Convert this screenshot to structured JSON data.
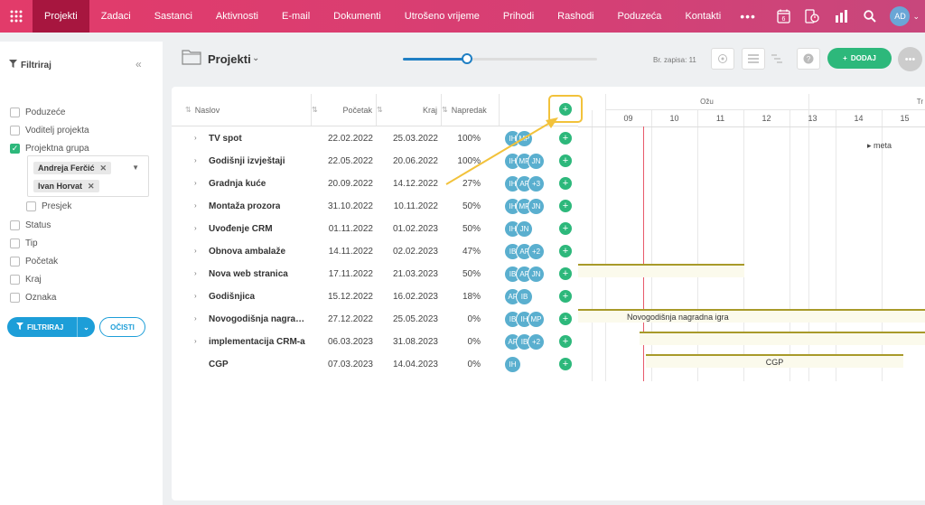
{
  "nav": {
    "items": [
      "Projekti",
      "Zadaci",
      "Sastanci",
      "Aktivnosti",
      "E-mail",
      "Dokumenti",
      "Utrošeno vrijeme",
      "Prihodi",
      "Rashodi",
      "Poduzeća",
      "Kontakti"
    ],
    "more": "•••",
    "calendar_day": "6",
    "user_initials": "AD"
  },
  "filter": {
    "title": "Filtriraj",
    "fields": [
      "Poduzeće",
      "Voditelj projekta",
      "Projektna grupa"
    ],
    "tags": [
      "Andreja Ferčić",
      "Ivan Horvat"
    ],
    "intersect": "Presjek",
    "more_fields": [
      "Status",
      "Tip",
      "Početak",
      "Kraj",
      "Oznaka"
    ],
    "apply_label": "FILTRIRAJ",
    "clear_label": "OČISTI"
  },
  "header": {
    "title": "Projekti",
    "record_count": "Br. zapisa: 11",
    "add_label": "DODAJ",
    "zoom": 0.33
  },
  "table": {
    "columns": [
      "Naslov",
      "Početak",
      "Kraj",
      "Napredak"
    ],
    "rows": [
      {
        "title": "TV spot",
        "start": "22.02.2022",
        "end": "25.03.2022",
        "progress": "100%",
        "avatars": [
          "IH",
          "MP"
        ],
        "expand": true
      },
      {
        "title": "Godišnji izvještaji",
        "start": "22.05.2022",
        "end": "20.06.2022",
        "progress": "100%",
        "avatars": [
          "IH",
          "MP",
          "JN"
        ],
        "expand": true
      },
      {
        "title": "Gradnja kuće",
        "start": "20.09.2022",
        "end": "14.12.2022",
        "progress": "27%",
        "avatars": [
          "IH",
          "AF",
          "+3"
        ],
        "expand": true
      },
      {
        "title": "Montaža prozora",
        "start": "31.10.2022",
        "end": "10.11.2022",
        "progress": "50%",
        "avatars": [
          "IH",
          "MP",
          "JN"
        ],
        "expand": true
      },
      {
        "title": "Uvođenje CRM",
        "start": "01.11.2022",
        "end": "01.02.2023",
        "progress": "50%",
        "avatars": [
          "IH",
          "JN"
        ],
        "expand": true
      },
      {
        "title": "Obnova ambalaže",
        "start": "14.11.2022",
        "end": "02.02.2023",
        "progress": "47%",
        "avatars": [
          "IB",
          "AF",
          "+2"
        ],
        "expand": true
      },
      {
        "title": "Nova web stranica",
        "start": "17.11.2022",
        "end": "21.03.2023",
        "progress": "50%",
        "avatars": [
          "IB",
          "AF",
          "JN"
        ],
        "expand": true
      },
      {
        "title": "Godišnjica",
        "start": "15.12.2022",
        "end": "16.02.2023",
        "progress": "18%",
        "avatars": [
          "AF",
          "IB"
        ],
        "expand": true
      },
      {
        "title": "Novogodišnja nagrad...",
        "start": "27.12.2022",
        "end": "25.05.2023",
        "progress": "0%",
        "avatars": [
          "IB",
          "IH",
          "MP"
        ],
        "expand": true
      },
      {
        "title": "implementacija CRM-a",
        "start": "06.03.2023",
        "end": "31.08.2023",
        "progress": "0%",
        "avatars": [
          "AF",
          "IB",
          "+2"
        ],
        "expand": true
      },
      {
        "title": "CGP",
        "start": "07.03.2023",
        "end": "14.04.2023",
        "progress": "0%",
        "avatars": [
          "IH"
        ],
        "expand": false
      }
    ]
  },
  "gantt": {
    "months": [
      "Ožu",
      "Tr"
    ],
    "days": [
      "09",
      "10",
      "11",
      "12",
      "13",
      "14",
      "15"
    ],
    "meta_label": "meta",
    "bar_labels": [
      "Novogodišnja nagradna igra",
      "CGP"
    ]
  },
  "colors": {
    "accent": "#e23b6a",
    "active_tab": "#a7163f",
    "green": "#2db87b",
    "blue": "#1d9ed8",
    "avatar": "#5aafcf",
    "highlight": "#f2c23b",
    "today": "#e85a6b"
  }
}
